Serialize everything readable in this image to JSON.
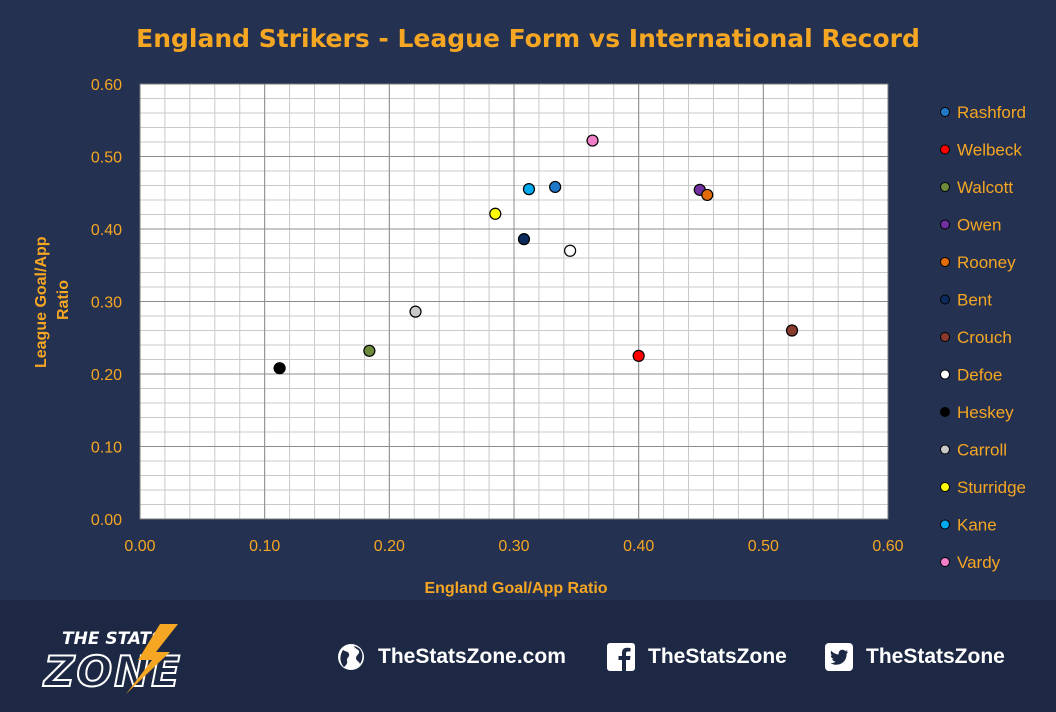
{
  "chart_data": {
    "type": "scatter",
    "title": "England Strikers - League Form vs International Record",
    "xlabel": "England Goal/App Ratio",
    "ylabel_lines": [
      "League Goal/App",
      "Ratio"
    ],
    "xlim": [
      0,
      0.6
    ],
    "ylim": [
      0,
      0.6
    ],
    "x_ticks": [
      "0.00",
      "0.10",
      "0.20",
      "0.30",
      "0.40",
      "0.50",
      "0.60"
    ],
    "y_ticks": [
      "0.00",
      "0.10",
      "0.20",
      "0.30",
      "0.40",
      "0.50",
      "0.60"
    ],
    "grid": true,
    "legend_position": "right",
    "series": [
      {
        "name": "Rashford",
        "x": 0.333,
        "y": 0.458,
        "color": "#1f78c8"
      },
      {
        "name": "Welbeck",
        "x": 0.4,
        "y": 0.225,
        "color": "#ff0000"
      },
      {
        "name": "Walcott",
        "x": 0.184,
        "y": 0.232,
        "color": "#6e8b3d"
      },
      {
        "name": "Owen",
        "x": 0.449,
        "y": 0.454,
        "color": "#7030a0"
      },
      {
        "name": "Rooney",
        "x": 0.455,
        "y": 0.447,
        "color": "#e36c0a"
      },
      {
        "name": "Bent",
        "x": 0.308,
        "y": 0.386,
        "color": "#0c2a5c"
      },
      {
        "name": "Crouch",
        "x": 0.523,
        "y": 0.26,
        "color": "#8b3a2e"
      },
      {
        "name": "Defoe",
        "x": 0.345,
        "y": 0.37,
        "color": "#ffffff"
      },
      {
        "name": "Heskey",
        "x": 0.112,
        "y": 0.208,
        "color": "#000000"
      },
      {
        "name": "Carroll",
        "x": 0.221,
        "y": 0.286,
        "color": "#c8c8c8"
      },
      {
        "name": "Sturridge",
        "x": 0.285,
        "y": 0.421,
        "color": "#ffff00"
      },
      {
        "name": "Kane",
        "x": 0.312,
        "y": 0.455,
        "color": "#00aaee"
      },
      {
        "name": "Vardy",
        "x": 0.363,
        "y": 0.522,
        "color": "#f07ec8"
      }
    ]
  },
  "colors": {
    "accent": "#f5a623",
    "background": "#243150",
    "footer": "#1d2944"
  },
  "footer": {
    "logo_line1": "THE STATS",
    "logo_line2": "ZONE",
    "links": [
      {
        "icon": "globe-icon",
        "label": "TheStatsZone.com"
      },
      {
        "icon": "facebook-icon",
        "label": "TheStatsZone"
      },
      {
        "icon": "twitter-icon",
        "label": "TheStatsZone"
      }
    ]
  }
}
